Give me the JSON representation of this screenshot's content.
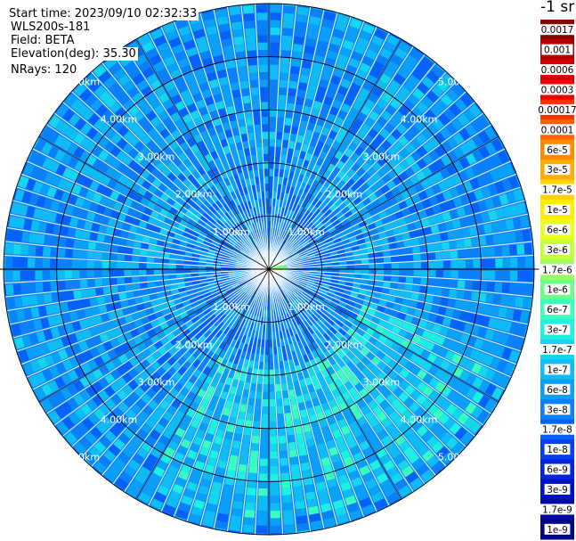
{
  "info": {
    "start_time": "Start time: 2023/09/10 02:32:33",
    "device": "WLS200s-181",
    "field": "Field: BETA",
    "elevation": "Elevation(deg): 35.30",
    "nrays": "NRays: 120"
  },
  "colorbar": {
    "unit_label": "-1 sr",
    "entries": [
      {
        "label": "0.0017",
        "color": "#8b0000"
      },
      {
        "label": "0.001",
        "color": "#b30000"
      },
      {
        "label": "0.0006",
        "color": "#d40000"
      },
      {
        "label": "0.0003",
        "color": "#f00000"
      },
      {
        "label": "0.00017",
        "color": "#ff3000"
      },
      {
        "label": "0.0001",
        "color": "#ff6000"
      },
      {
        "label": "6e-5",
        "color": "#ff8a00"
      },
      {
        "label": "3e-5",
        "color": "#ffad00"
      },
      {
        "label": "1.7e-5",
        "color": "#ffd200"
      },
      {
        "label": "1e-5",
        "color": "#ffee00"
      },
      {
        "label": "6e-6",
        "color": "#eaff1a"
      },
      {
        "label": "3e-6",
        "color": "#c6ff3a"
      },
      {
        "label": "1.7e-6",
        "color": "#9cff5e"
      },
      {
        "label": "1e-6",
        "color": "#6dff8c"
      },
      {
        "label": "6e-7",
        "color": "#3cffbe"
      },
      {
        "label": "3e-7",
        "color": "#1ef0e2"
      },
      {
        "label": "1.7e-7",
        "color": "#16d6ee"
      },
      {
        "label": "1e-7",
        "color": "#10bcf4"
      },
      {
        "label": "6e-8",
        "color": "#0aa0f8"
      },
      {
        "label": "3e-8",
        "color": "#0a80fa"
      },
      {
        "label": "1.7e-8",
        "color": "#0660fa"
      },
      {
        "label": "1e-8",
        "color": "#0440ee"
      },
      {
        "label": "6e-9",
        "color": "#0222dc"
      },
      {
        "label": "3e-9",
        "color": "#0010c4"
      },
      {
        "label": "1.7e-9",
        "color": "#000aa0"
      },
      {
        "label": "1e-9",
        "color": "#000680"
      }
    ]
  },
  "chart_data": {
    "type": "heatmap",
    "projection": "polar (PPI)",
    "field": "BETA",
    "elevation_deg": 35.3,
    "n_rays": 120,
    "range_rings_km": [
      1.0,
      2.0,
      3.0,
      4.0,
      5.0
    ],
    "max_range_km": 5.0,
    "ring_labels": [
      "1.00km",
      "2.00km",
      "3.00km",
      "4.00km",
      "5.00km"
    ],
    "scale": "log",
    "value_range": [
      1e-09,
      0.0017
    ],
    "unit": "-1 sr",
    "grid": true
  }
}
